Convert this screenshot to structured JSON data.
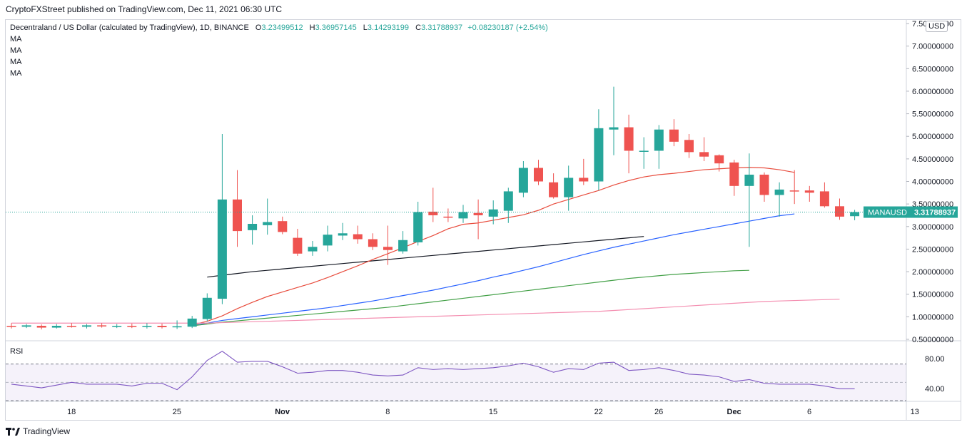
{
  "header": {
    "publisher_line": "CryptoFXStreet published on TradingView.com, Dec 11, 2021 06:30 UTC"
  },
  "legend": {
    "symbol": "Decentraland / US Dollar (calculated by TradingView), 1D, BINANCE",
    "open_label": "O",
    "open": "3.23499512",
    "high_label": "H",
    "high": "3.36957145",
    "low_label": "L",
    "low": "3.14293199",
    "close_label": "C",
    "close": "3.31788937",
    "change": "+0.08230187 (+2.54%)",
    "ma_labels": [
      "MA",
      "MA",
      "MA",
      "MA"
    ]
  },
  "currency": "USD",
  "price_tag": {
    "symbol": "MANAUSD",
    "value": "3.31788937"
  },
  "rsi": {
    "label": "RSI",
    "levels": [
      "80.00",
      "40.00"
    ]
  },
  "footer": {
    "brand": "TradingView"
  },
  "colors": {
    "up": "#26a69a",
    "down": "#ef5350",
    "ma20": "#e84c3d",
    "ma50": "#2962ff",
    "ma100": "#43a047",
    "ma200": "#f48fb1",
    "ma_long": "#131722",
    "rsi": "#7e57c2"
  },
  "chart_data": {
    "type": "candlestick",
    "title": "Decentraland / US Dollar, 1D, BINANCE",
    "y_ticks": [
      "0.50000000",
      "1.00000000",
      "1.50000000",
      "2.00000000",
      "2.50000000",
      "3.00000000",
      "3.50000000",
      "4.00000000",
      "4.50000000",
      "5.00000000",
      "5.50000000",
      "6.00000000",
      "6.50000000",
      "7.00000000",
      "7.50000000"
    ],
    "y_tick_values": [
      0.5,
      1,
      1.5,
      2,
      2.5,
      3,
      3.5,
      4,
      4.5,
      5,
      5.5,
      6,
      6.5,
      7,
      7.5
    ],
    "ylim": [
      0.5,
      7.5
    ],
    "x_ticks": [
      {
        "label": "18",
        "index": 2
      },
      {
        "label": "25",
        "index": 9
      },
      {
        "label": "Nov",
        "index": 16
      },
      {
        "label": "8",
        "index": 23
      },
      {
        "label": "15",
        "index": 30
      },
      {
        "label": "22",
        "index": 37
      },
      {
        "label": "26",
        "index": 41
      },
      {
        "label": "Dec",
        "index": 46
      },
      {
        "label": "6",
        "index": 51
      },
      {
        "label": "13",
        "index": 58
      }
    ],
    "candles": [
      {
        "o": 0.8,
        "h": 0.86,
        "l": 0.74,
        "c": 0.78
      },
      {
        "o": 0.78,
        "h": 0.84,
        "l": 0.75,
        "c": 0.81
      },
      {
        "o": 0.8,
        "h": 0.83,
        "l": 0.72,
        "c": 0.76
      },
      {
        "o": 0.76,
        "h": 0.84,
        "l": 0.74,
        "c": 0.8
      },
      {
        "o": 0.8,
        "h": 0.86,
        "l": 0.76,
        "c": 0.78
      },
      {
        "o": 0.78,
        "h": 0.84,
        "l": 0.74,
        "c": 0.81
      },
      {
        "o": 0.81,
        "h": 0.86,
        "l": 0.76,
        "c": 0.79
      },
      {
        "o": 0.79,
        "h": 0.84,
        "l": 0.75,
        "c": 0.8
      },
      {
        "o": 0.8,
        "h": 0.85,
        "l": 0.75,
        "c": 0.78
      },
      {
        "o": 0.78,
        "h": 0.86,
        "l": 0.74,
        "c": 0.8
      },
      {
        "o": 0.8,
        "h": 0.85,
        "l": 0.74,
        "c": 0.77
      },
      {
        "o": 0.77,
        "h": 0.92,
        "l": 0.73,
        "c": 0.79
      },
      {
        "o": 0.78,
        "h": 1.02,
        "l": 0.75,
        "c": 0.96
      },
      {
        "o": 0.95,
        "h": 1.52,
        "l": 0.9,
        "c": 1.42
      },
      {
        "o": 1.4,
        "h": 5.05,
        "l": 1.28,
        "c": 3.6
      },
      {
        "o": 3.6,
        "h": 4.25,
        "l": 2.55,
        "c": 2.9
      },
      {
        "o": 2.92,
        "h": 3.25,
        "l": 2.6,
        "c": 3.06
      },
      {
        "o": 3.03,
        "h": 3.62,
        "l": 2.82,
        "c": 3.1
      },
      {
        "o": 3.12,
        "h": 3.22,
        "l": 2.83,
        "c": 2.88
      },
      {
        "o": 2.75,
        "h": 2.95,
        "l": 2.35,
        "c": 2.4
      },
      {
        "o": 2.45,
        "h": 2.68,
        "l": 2.35,
        "c": 2.55
      },
      {
        "o": 2.58,
        "h": 3.02,
        "l": 2.45,
        "c": 2.82
      },
      {
        "o": 2.8,
        "h": 3.08,
        "l": 2.7,
        "c": 2.85
      },
      {
        "o": 2.83,
        "h": 3.02,
        "l": 2.62,
        "c": 2.72
      },
      {
        "o": 2.72,
        "h": 2.85,
        "l": 2.48,
        "c": 2.55
      },
      {
        "o": 2.55,
        "h": 3.02,
        "l": 2.15,
        "c": 2.48
      },
      {
        "o": 2.45,
        "h": 2.9,
        "l": 2.4,
        "c": 2.7
      },
      {
        "o": 2.65,
        "h": 3.55,
        "l": 2.58,
        "c": 3.32
      },
      {
        "o": 3.33,
        "h": 3.86,
        "l": 3.1,
        "c": 3.25
      },
      {
        "o": 3.22,
        "h": 3.4,
        "l": 3.1,
        "c": 3.2
      },
      {
        "o": 3.18,
        "h": 3.48,
        "l": 3.08,
        "c": 3.32
      },
      {
        "o": 3.3,
        "h": 3.6,
        "l": 2.72,
        "c": 3.25
      },
      {
        "o": 3.22,
        "h": 3.58,
        "l": 3.05,
        "c": 3.38
      },
      {
        "o": 3.35,
        "h": 3.86,
        "l": 3.08,
        "c": 3.78
      },
      {
        "o": 3.75,
        "h": 4.45,
        "l": 3.65,
        "c": 4.3
      },
      {
        "o": 4.3,
        "h": 4.48,
        "l": 3.92,
        "c": 4.0
      },
      {
        "o": 3.98,
        "h": 4.18,
        "l": 3.62,
        "c": 3.65
      },
      {
        "o": 3.65,
        "h": 4.35,
        "l": 3.35,
        "c": 4.08
      },
      {
        "o": 4.08,
        "h": 4.5,
        "l": 3.92,
        "c": 4.0
      },
      {
        "o": 4.0,
        "h": 5.6,
        "l": 3.8,
        "c": 5.18
      },
      {
        "o": 5.15,
        "h": 6.1,
        "l": 4.58,
        "c": 5.2
      },
      {
        "o": 5.2,
        "h": 5.48,
        "l": 4.18,
        "c": 4.68
      },
      {
        "o": 4.68,
        "h": 4.98,
        "l": 4.28,
        "c": 4.68
      },
      {
        "o": 4.68,
        "h": 5.25,
        "l": 4.28,
        "c": 5.15
      },
      {
        "o": 5.15,
        "h": 5.38,
        "l": 4.78,
        "c": 4.88
      },
      {
        "o": 4.92,
        "h": 5.05,
        "l": 4.52,
        "c": 4.65
      },
      {
        "o": 4.65,
        "h": 4.98,
        "l": 4.45,
        "c": 4.55
      },
      {
        "o": 4.58,
        "h": 4.6,
        "l": 4.22,
        "c": 4.4
      },
      {
        "o": 4.42,
        "h": 4.48,
        "l": 3.68,
        "c": 3.9
      },
      {
        "o": 3.9,
        "h": 4.62,
        "l": 2.55,
        "c": 4.15
      },
      {
        "o": 4.15,
        "h": 4.2,
        "l": 3.55,
        "c": 3.7
      },
      {
        "o": 3.7,
        "h": 3.98,
        "l": 3.22,
        "c": 3.82
      },
      {
        "o": 3.8,
        "h": 4.25,
        "l": 3.5,
        "c": 3.78
      },
      {
        "o": 3.8,
        "h": 3.9,
        "l": 3.55,
        "c": 3.75
      },
      {
        "o": 3.78,
        "h": 3.98,
        "l": 3.42,
        "c": 3.45
      },
      {
        "o": 3.45,
        "h": 3.62,
        "l": 3.15,
        "c": 3.22
      },
      {
        "o": 3.23,
        "h": 3.37,
        "l": 3.14,
        "c": 3.32
      }
    ],
    "ma_lines": [
      {
        "name": "MA long (black)",
        "start": 13,
        "values": [
          1.88,
          1.92,
          1.96,
          2.0,
          2.03,
          2.06,
          2.09,
          2.12,
          2.15,
          2.18,
          2.21,
          2.24,
          2.27,
          2.3,
          2.33,
          2.36,
          2.39,
          2.42,
          2.45,
          2.48,
          2.51,
          2.54,
          2.57,
          2.6,
          2.63,
          2.66,
          2.69,
          2.72,
          2.75,
          2.78
        ]
      },
      {
        "name": "MA 20 (red)",
        "start": 12,
        "values": [
          0.82,
          0.9,
          1.02,
          1.18,
          1.32,
          1.45,
          1.55,
          1.65,
          1.75,
          1.87,
          2.0,
          2.13,
          2.27,
          2.4,
          2.53,
          2.67,
          2.8,
          2.95,
          3.05,
          3.08,
          3.14,
          3.2,
          3.26,
          3.36,
          3.5,
          3.6,
          3.7,
          3.8,
          3.92,
          4.02,
          4.1,
          4.15,
          4.18,
          4.22,
          4.26,
          4.28,
          4.3,
          4.31,
          4.3,
          4.26,
          4.2
        ]
      },
      {
        "name": "MA 50 (blue)",
        "start": 12,
        "values": [
          0.8,
          0.86,
          0.92,
          0.96,
          1.0,
          1.04,
          1.08,
          1.12,
          1.16,
          1.2,
          1.25,
          1.3,
          1.35,
          1.41,
          1.47,
          1.53,
          1.59,
          1.66,
          1.73,
          1.8,
          1.88,
          1.95,
          2.03,
          2.11,
          2.2,
          2.29,
          2.38,
          2.46,
          2.54,
          2.61,
          2.68,
          2.75,
          2.82,
          2.88,
          2.94,
          3.0,
          3.06,
          3.12,
          3.18,
          3.24,
          3.28
        ]
      },
      {
        "name": "MA 100 (green)",
        "start": 12,
        "values": [
          0.8,
          0.84,
          0.88,
          0.91,
          0.94,
          0.97,
          1.0,
          1.03,
          1.06,
          1.09,
          1.12,
          1.15,
          1.18,
          1.21,
          1.25,
          1.29,
          1.33,
          1.37,
          1.41,
          1.45,
          1.49,
          1.53,
          1.57,
          1.61,
          1.65,
          1.69,
          1.73,
          1.77,
          1.81,
          1.85,
          1.88,
          1.91,
          1.94,
          1.96,
          1.98,
          2.0,
          2.02,
          2.03
        ]
      },
      {
        "name": "MA 200 (pink)",
        "start": 0,
        "values": [
          0.86,
          0.86,
          0.86,
          0.86,
          0.86,
          0.86,
          0.86,
          0.86,
          0.86,
          0.86,
          0.86,
          0.86,
          0.86,
          0.86,
          0.87,
          0.88,
          0.89,
          0.9,
          0.91,
          0.92,
          0.93,
          0.94,
          0.95,
          0.96,
          0.97,
          0.98,
          0.99,
          1.0,
          1.01,
          1.02,
          1.03,
          1.04,
          1.05,
          1.06,
          1.07,
          1.08,
          1.09,
          1.1,
          1.11,
          1.12,
          1.14,
          1.16,
          1.18,
          1.2,
          1.22,
          1.24,
          1.26,
          1.28,
          1.3,
          1.32,
          1.34,
          1.35,
          1.36,
          1.37,
          1.38,
          1.39
        ]
      }
    ],
    "rsi_values": [
      48,
      46,
      44,
      47,
      50,
      48,
      48,
      48,
      46,
      49,
      49,
      42,
      56,
      74,
      84,
      72,
      73,
      73,
      67,
      60,
      61,
      63,
      63,
      61,
      58,
      57,
      58,
      66,
      64,
      65,
      64,
      65,
      66,
      68,
      71,
      67,
      61,
      65,
      64,
      71,
      72,
      63,
      64,
      66,
      63,
      59,
      58,
      56,
      51,
      53,
      49,
      48,
      48,
      48,
      46,
      43,
      43
    ],
    "rsi_ylim": [
      30,
      90
    ]
  }
}
